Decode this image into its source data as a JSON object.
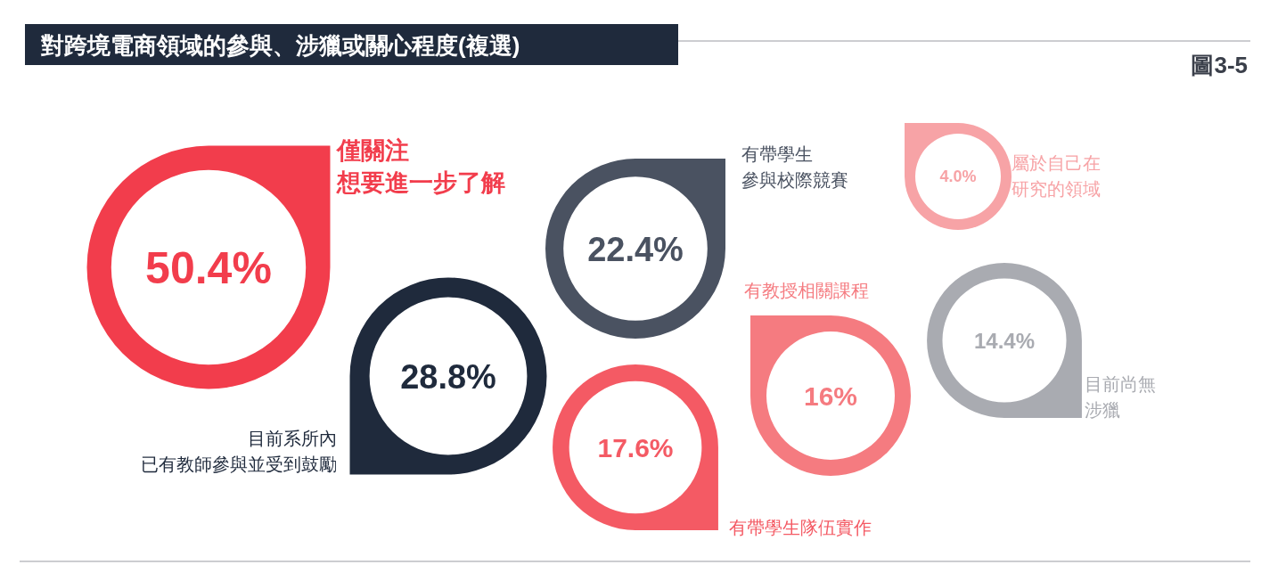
{
  "chart_data": {
    "type": "other",
    "title": "對跨境電商領域的參與、涉獵或關心程度(複選)",
    "annotations": [
      "圖3-5"
    ],
    "categories": [
      "僅關注想要進一步了解",
      "有帶學生參與校際競賽",
      "屬於自己在研究的領域",
      "目前系所內已有教師參與並受到鼓勵",
      "有帶學生隊伍實作",
      "有教授相關課程",
      "目前尚無涉獵"
    ],
    "values": [
      50.4,
      22.4,
      4.0,
      28.8,
      17.6,
      16,
      14.4
    ],
    "value_labels": [
      "50.4%",
      "22.4%",
      "4.0%",
      "28.8%",
      "17.6%",
      "16%",
      "14.4%"
    ],
    "colors": [
      "#f23d4c",
      "#4a5261",
      "#f7a3a6",
      "#1f2a3c",
      "#f45a64",
      "#f57b80",
      "#a9abb1"
    ]
  }
}
